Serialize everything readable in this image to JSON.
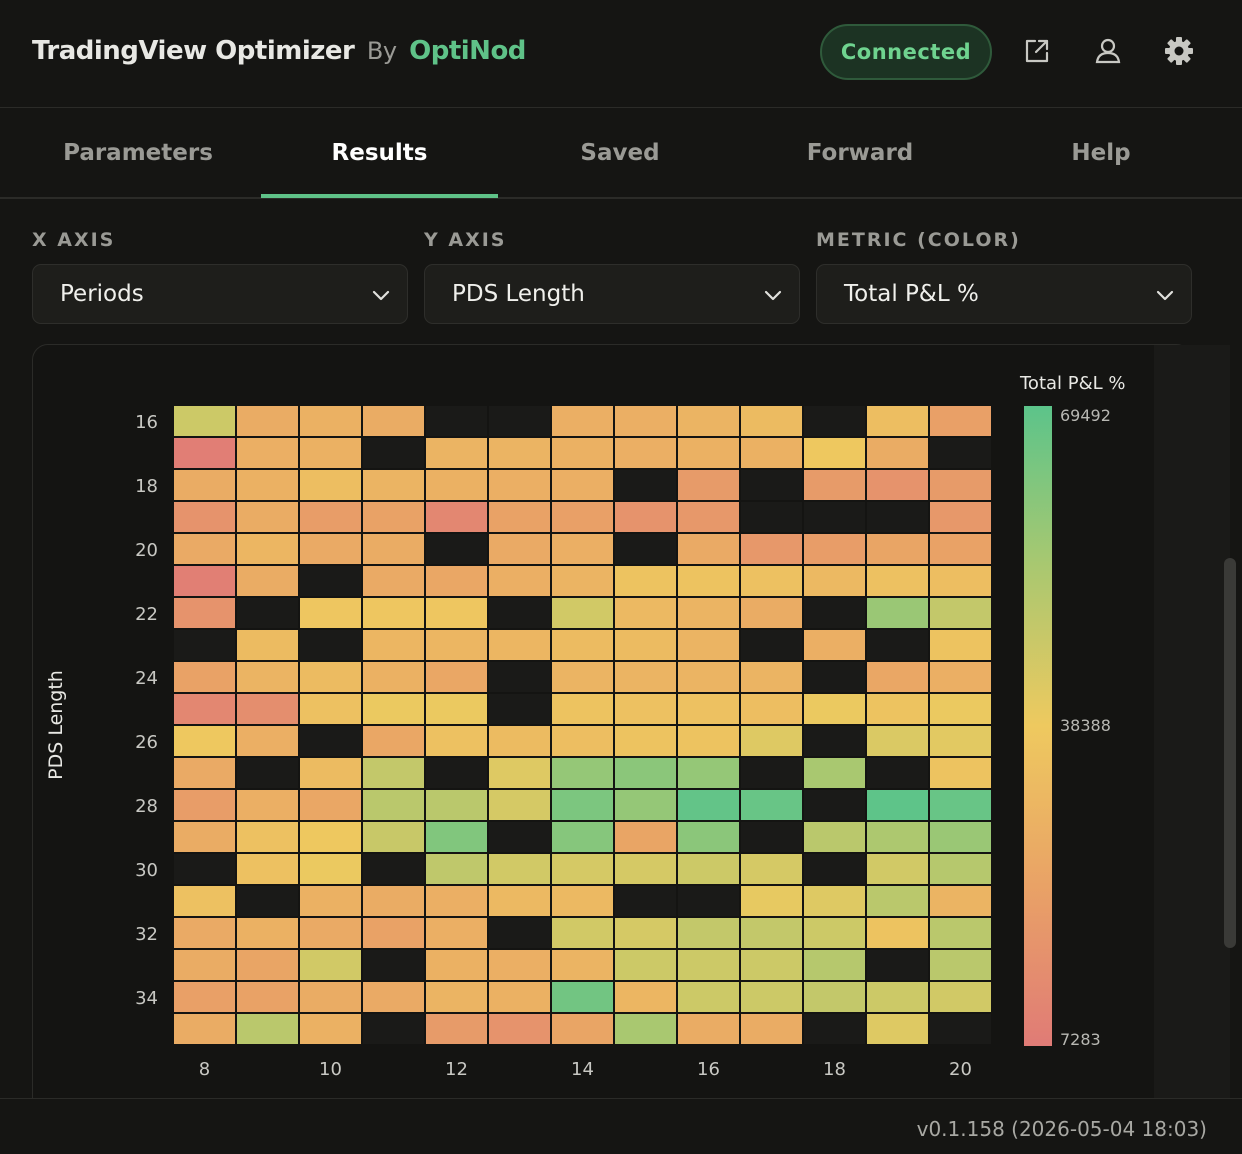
{
  "header": {
    "app_name": "TradingView Optimizer",
    "by": "By",
    "vendor": "OptiNod",
    "status": "Connected",
    "icons": [
      "external-link-icon",
      "user-icon",
      "gear-icon"
    ]
  },
  "tabs": [
    {
      "label": "Parameters",
      "active": false
    },
    {
      "label": "Results",
      "active": true
    },
    {
      "label": "Saved",
      "active": false
    },
    {
      "label": "Forward",
      "active": false
    },
    {
      "label": "Help",
      "active": false
    }
  ],
  "selectors": {
    "x_axis": {
      "label": "X AXIS",
      "value": "Periods"
    },
    "y_axis": {
      "label": "Y AXIS",
      "value": "PDS Length"
    },
    "metric": {
      "label": "METRIC (COLOR)",
      "value": "Total P&L %"
    }
  },
  "chart_data": {
    "type": "heatmap",
    "ylabel": "PDS Length",
    "x": [
      8,
      9,
      10,
      11,
      12,
      13,
      14,
      15,
      16,
      17,
      18,
      19,
      20
    ],
    "y": [
      16,
      17,
      18,
      19,
      20,
      21,
      22,
      23,
      24,
      25,
      26,
      27,
      28,
      29,
      30,
      31,
      32,
      33,
      34,
      35
    ],
    "x_ticks": [
      8,
      10,
      12,
      14,
      16,
      18,
      20
    ],
    "y_ticks": [
      16,
      18,
      20,
      22,
      24,
      26,
      28,
      30,
      32,
      34
    ],
    "colorbar": {
      "title": "Total P&L %",
      "min": 7283,
      "mid": 38388,
      "max": 69492
    },
    "values": [
      [
        46000,
        27000,
        29000,
        27000,
        null,
        null,
        28000,
        28000,
        30000,
        33000,
        null,
        34000,
        22000
      ],
      [
        8500,
        28000,
        29000,
        null,
        30000,
        30000,
        29000,
        28000,
        29000,
        29000,
        38000,
        27000,
        null
      ],
      [
        27000,
        29000,
        34000,
        30000,
        29000,
        28000,
        28000,
        null,
        20000,
        null,
        20000,
        17000,
        20000
      ],
      [
        17000,
        27000,
        21000,
        23000,
        12000,
        23000,
        22000,
        17000,
        19000,
        null,
        null,
        null,
        19000
      ],
      [
        26000,
        31000,
        26000,
        27000,
        null,
        26000,
        28000,
        null,
        26000,
        19000,
        21000,
        24000,
        23000
      ],
      [
        9000,
        27000,
        null,
        26000,
        25000,
        28000,
        30000,
        36000,
        36000,
        35000,
        32000,
        35000,
        34000
      ],
      [
        17000,
        null,
        37000,
        37000,
        37000,
        null,
        45000,
        32000,
        30000,
        27000,
        null,
        57000,
        48000
      ],
      [
        null,
        33000,
        null,
        31000,
        31000,
        31000,
        33000,
        33000,
        30000,
        null,
        28000,
        null,
        36000
      ],
      [
        23000,
        30000,
        33000,
        29000,
        25000,
        null,
        30000,
        30000,
        30000,
        30000,
        null,
        25000,
        28000
      ],
      [
        12000,
        15000,
        35000,
        39000,
        39000,
        null,
        36000,
        35000,
        35000,
        34000,
        39000,
        36000,
        39000
      ],
      [
        38000,
        28000,
        null,
        25000,
        35000,
        33000,
        34000,
        36000,
        36000,
        42000,
        null,
        43000,
        41000
      ],
      [
        26000,
        null,
        33000,
        48000,
        null,
        42000,
        58000,
        60000,
        58000,
        null,
        54000,
        null,
        36000
      ],
      [
        21000,
        28000,
        25000,
        50000,
        50000,
        44000,
        63000,
        58000,
        68000,
        67000,
        null,
        69000,
        67000
      ],
      [
        27000,
        35000,
        38000,
        47000,
        62000,
        null,
        61000,
        24000,
        60000,
        null,
        50000,
        53000,
        57000
      ],
      [
        null,
        35000,
        39000,
        null,
        49000,
        45000,
        44000,
        44000,
        46000,
        44000,
        null,
        45000,
        51000
      ],
      [
        35000,
        null,
        29000,
        27000,
        28000,
        32000,
        32000,
        null,
        null,
        40000,
        42000,
        50000,
        30000
      ],
      [
        26000,
        29000,
        26000,
        23000,
        28000,
        null,
        45000,
        44000,
        48000,
        48000,
        46000,
        36000,
        50000
      ],
      [
        27000,
        24000,
        45000,
        null,
        29000,
        28000,
        30000,
        46000,
        46000,
        46000,
        51000,
        null,
        50000
      ],
      [
        22000,
        23000,
        27000,
        26000,
        30000,
        29000,
        65000,
        31000,
        46000,
        46000,
        48000,
        46000,
        45000
      ],
      [
        27000,
        50000,
        29000,
        null,
        20000,
        17000,
        24000,
        54000,
        27000,
        27000,
        null,
        42000,
        null
      ]
    ]
  },
  "footer": {
    "version": "v0.1.158 (2026-05-04 18:03)"
  },
  "colors": {
    "accent": "#5fc288",
    "status_text": "#6fd38f",
    "empty_cell": "#1a1a18",
    "scale_low": "#e07b76",
    "scale_mid": "#eec95f",
    "scale_high": "#5cc48a"
  }
}
